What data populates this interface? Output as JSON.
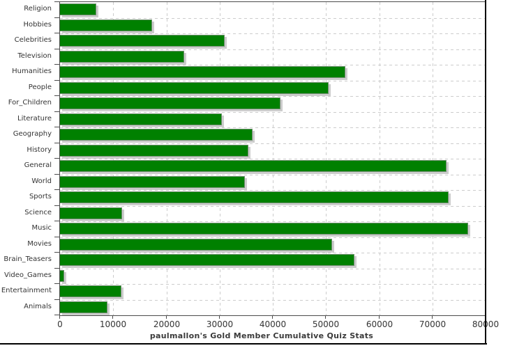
{
  "chart_data": {
    "type": "bar",
    "orientation": "horizontal",
    "title": "paulmallon's Gold Member Cumulative Quiz Stats",
    "categories": [
      "Religion",
      "Hobbies",
      "Celebrities",
      "Television",
      "Humanities",
      "People",
      "For_Children",
      "Literature",
      "Geography",
      "History",
      "General",
      "World",
      "Sports",
      "Science",
      "Music",
      "Movies",
      "Brain_Teasers",
      "Video_Games",
      "Entertainment",
      "Animals"
    ],
    "values": [
      6800,
      17300,
      31000,
      23400,
      53700,
      50500,
      41500,
      30400,
      36200,
      35400,
      72700,
      34700,
      73100,
      11700,
      76700,
      51200,
      55300,
      800,
      11500,
      8900
    ],
    "xlim": [
      0,
      80000
    ],
    "x_ticks": [
      0,
      10000,
      20000,
      30000,
      40000,
      50000,
      60000,
      70000,
      80000
    ],
    "x_tick_labels": [
      "0",
      "10000",
      "20000",
      "30000",
      "40000",
      "50000",
      "60000",
      "70000",
      "80000"
    ],
    "grid": "dashed-both-axes",
    "legend": "none",
    "bar_color": "#008000",
    "bar_shadow_color": "#cccccc",
    "xlabel": "",
    "ylabel": ""
  },
  "colors": {
    "axis": "#4a4a4a",
    "gridline": "#cccccc",
    "tick_text": "#333333",
    "title_text": "#3a3a3a",
    "outer_border": "#000000",
    "background": "#ffffff"
  }
}
